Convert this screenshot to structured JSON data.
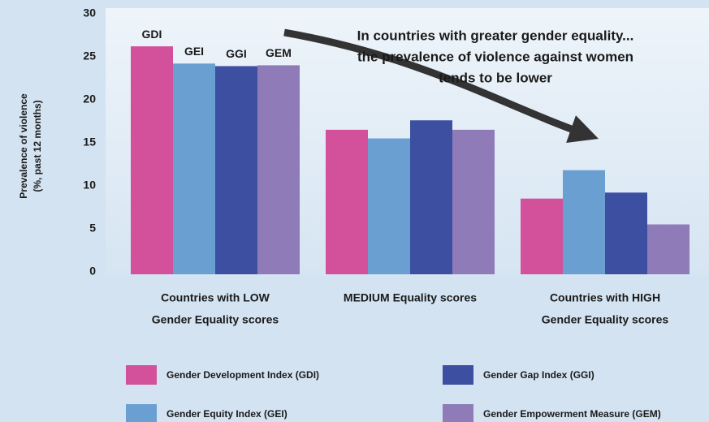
{
  "chart_data": {
    "type": "bar",
    "ylabel": [
      "Prevalence of violence",
      "(%, past 12 months)"
    ],
    "annotation": [
      "In countries with greater gender equality...",
      "the prevalence of violence against women",
      "tends to be lower"
    ],
    "categories": [
      [
        "Countries with LOW",
        "Gender Equality scores"
      ],
      [
        "MEDIUM Equality scores"
      ],
      [
        "Countries with HIGH",
        "Gender Equality scores"
      ]
    ],
    "series": [
      {
        "name": "Gender Development Index (GDI)",
        "label": "GDI",
        "color": "#d2519a",
        "values": [
          26.5,
          16.8,
          8.8
        ]
      },
      {
        "name": "Gender Equity Index (GEI)",
        "label": "GEI",
        "color": "#6a9fd2",
        "values": [
          24.5,
          15.8,
          12.1
        ]
      },
      {
        "name": "Gender Gap Index (GGI)",
        "label": "GGI",
        "color": "#3d4fa0",
        "values": [
          24.2,
          17.9,
          9.5
        ]
      },
      {
        "name": "Gender Empowerment Measure (GEM)",
        "label": "GEM",
        "color": "#8e7bb8",
        "values": [
          24.3,
          16.8,
          5.8
        ]
      }
    ],
    "ylim": [
      0,
      30
    ],
    "yticks": [
      0,
      5,
      10,
      15,
      20,
      25,
      30
    ],
    "grid": false
  }
}
